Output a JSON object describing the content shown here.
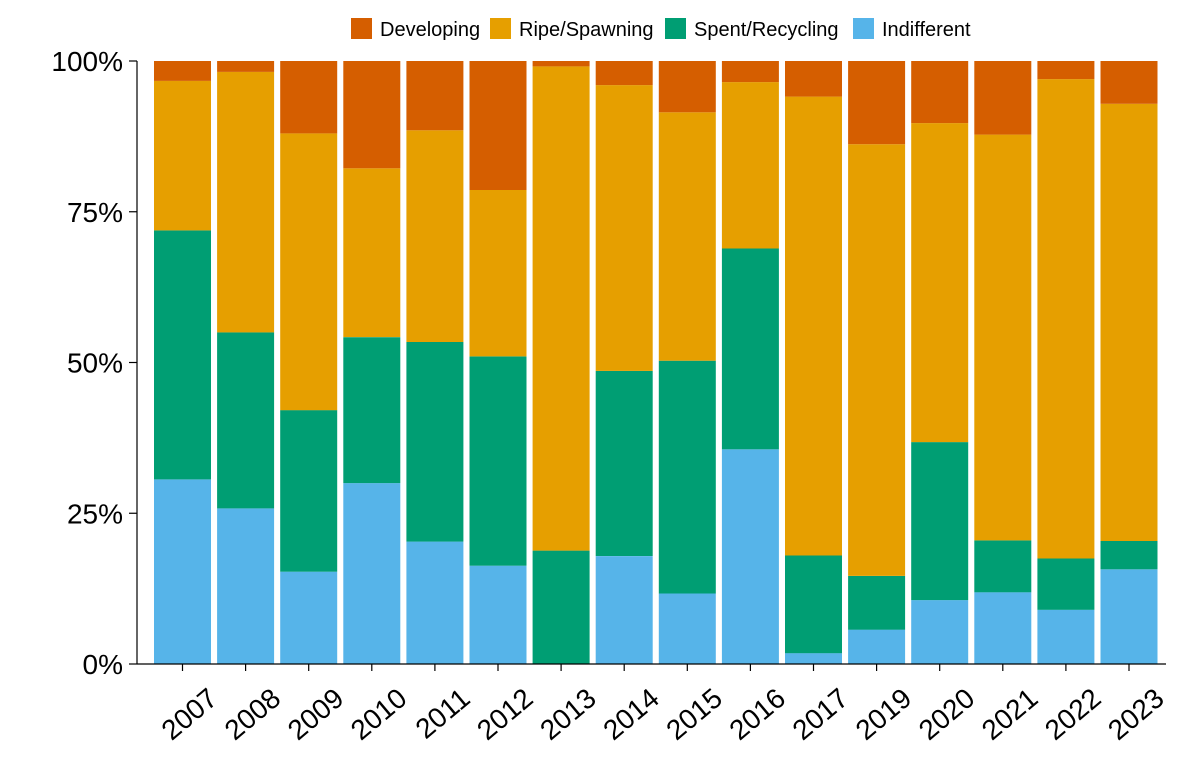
{
  "chart_data": {
    "type": "bar",
    "stacked": true,
    "percent": true,
    "categories": [
      "2007",
      "2008",
      "2009",
      "2010",
      "2011",
      "2012",
      "2013",
      "2014",
      "2015",
      "2016",
      "2017",
      "2019",
      "2020",
      "2021",
      "2022",
      "2023"
    ],
    "series": [
      {
        "name": "Indifferent",
        "color": "#56B4E9",
        "values": [
          30.6,
          25.8,
          15.3,
          30.0,
          20.3,
          16.3,
          0.0,
          17.9,
          11.7,
          35.6,
          1.8,
          5.7,
          10.6,
          11.9,
          9.0,
          15.7
        ]
      },
      {
        "name": "Spent/Recycling",
        "color": "#009E73",
        "values": [
          41.3,
          29.2,
          26.8,
          24.2,
          33.1,
          34.7,
          18.8,
          30.7,
          38.6,
          33.3,
          16.2,
          8.9,
          26.2,
          8.6,
          8.5,
          4.7
        ]
      },
      {
        "name": "Ripe/Spawning",
        "color": "#E69F00",
        "values": [
          24.8,
          43.2,
          45.9,
          28.0,
          35.1,
          27.6,
          80.3,
          47.4,
          41.2,
          27.6,
          76.1,
          71.6,
          52.9,
          67.3,
          79.5,
          72.5
        ]
      },
      {
        "name": "Developing",
        "color": "#D55E00",
        "values": [
          3.3,
          1.8,
          12.0,
          17.8,
          11.5,
          21.4,
          0.9,
          4.0,
          8.5,
          3.5,
          5.9,
          13.8,
          10.3,
          12.2,
          3.0,
          7.1
        ]
      }
    ],
    "legend_order": [
      "Developing",
      "Ripe/Spawning",
      "Spent/Recycling",
      "Indifferent"
    ],
    "legend_position": "top",
    "yticks": [
      "0%",
      "25%",
      "50%",
      "75%",
      "100%"
    ],
    "ylim": [
      0,
      100
    ],
    "title": "",
    "xlabel": "",
    "ylabel": "",
    "grid": false
  }
}
